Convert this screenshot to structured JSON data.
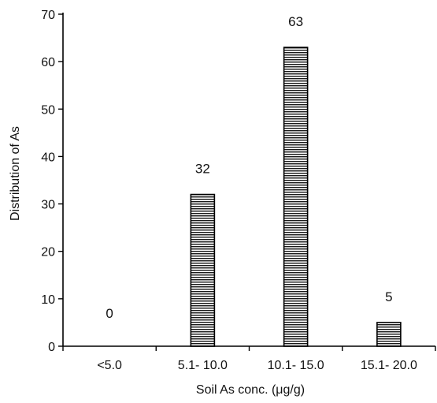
{
  "chart_data": {
    "type": "bar",
    "categories": [
      "<5.0",
      "5.1- 10.0",
      "10.1- 15.0",
      "15.1- 20.0"
    ],
    "values": [
      0,
      32,
      63,
      5
    ],
    "data_labels": [
      "0",
      "32",
      "63",
      "5"
    ],
    "xlabel": "Soil As conc. (μg/g)",
    "ylabel": "Distribution of As",
    "ylim": [
      0,
      70
    ],
    "yticks": [
      0,
      10,
      20,
      30,
      40,
      50,
      60,
      70
    ],
    "grid": false,
    "legend": "none",
    "bar_color": "#000000"
  }
}
